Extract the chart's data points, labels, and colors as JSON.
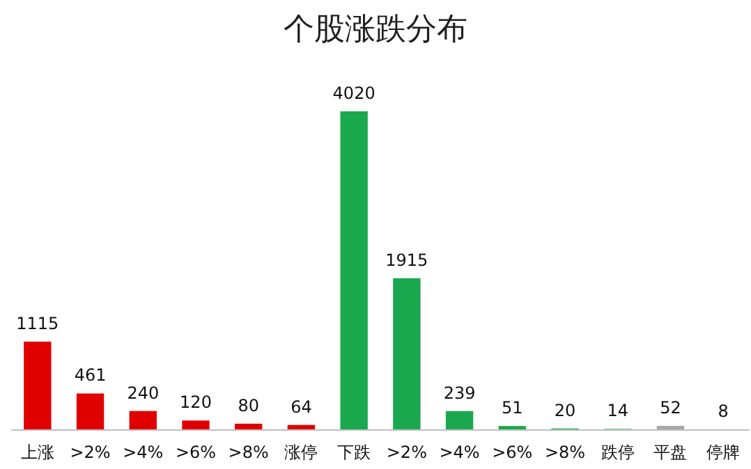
{
  "chart_data": {
    "type": "bar",
    "title": "个股涨跌分布",
    "categories": [
      "上涨",
      ">2%",
      ">4%",
      ">6%",
      ">8%",
      "涨停",
      "下跌",
      ">2%",
      ">4%",
      ">6%",
      ">8%",
      "跌停",
      "平盘",
      "停牌"
    ],
    "values": [
      1115,
      461,
      240,
      120,
      80,
      64,
      4020,
      1915,
      239,
      51,
      20,
      14,
      52,
      8
    ],
    "colors": [
      "#e00000",
      "#e00000",
      "#e00000",
      "#e00000",
      "#e00000",
      "#e00000",
      "#1aa84f",
      "#1aa84f",
      "#1aa84f",
      "#1aa84f",
      "#1aa84f",
      "#1aa84f",
      "#a6a6a6",
      "#595959"
    ],
    "data_labels": true
  }
}
